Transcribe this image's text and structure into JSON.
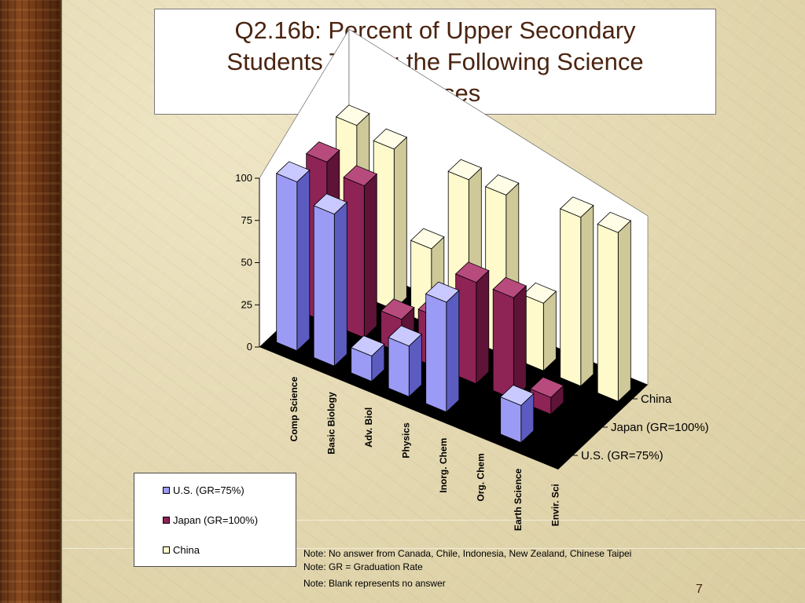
{
  "slide": {
    "title": "Q2.16b: Percent of Upper Secondary Students Taking the Following Science Courses",
    "notes": [
      "Note: No answer from Canada, Chile, Indonesia, New Zealand, Chinese Taipei",
      "Note: GR = Graduation Rate",
      "Note: Blank represents no answer"
    ],
    "page_number": "7"
  },
  "legend": {
    "items": [
      {
        "label": "U.S. (GR=75%)",
        "color": "#9b9bf5"
      },
      {
        "label": "Japan (GR=100%)",
        "color": "#8e2356"
      },
      {
        "label": "China",
        "color": "#fffacc"
      }
    ]
  },
  "colors": {
    "us_front": "#9b9bf5",
    "us_side": "#5c5cc0",
    "us_top": "#c9c9ff",
    "japan_front": "#8e2356",
    "japan_side": "#5e1337",
    "japan_top": "#b84b7e",
    "china_front": "#fffacc",
    "china_side": "#cfc99a",
    "china_top": "#fffde6",
    "floor": "#000000",
    "walls": "#ffffff",
    "title_text": "#4a2410"
  },
  "chart_data": {
    "type": "bar",
    "subtype": "3d-column",
    "title": "Q2.16b: Percent of Upper Secondary Students Taking the Following Science Courses",
    "categories": [
      "Comp Science",
      "Basic Biology",
      "Adv. Biol",
      "Physics",
      "Inorg. Chem",
      "Org. Chem",
      "Earth Science",
      "Envir. Sci"
    ],
    "series": [
      {
        "name": "U.S. (GR=75%)",
        "values": [
          100,
          90,
          15,
          30,
          65,
          null,
          22,
          null
        ]
      },
      {
        "name": "Japan (GR=100%)",
        "values": [
          95,
          90,
          20,
          30,
          60,
          60,
          10,
          null
        ]
      },
      {
        "name": "China",
        "values": [
          100,
          95,
          45,
          95,
          95,
          40,
          100,
          100
        ]
      }
    ],
    "z_labels": [
      "China",
      "Japan (GR=100%)",
      "U.S. (GR=75%)"
    ],
    "y_ticks": [
      0,
      25,
      50,
      75,
      100
    ],
    "ylim": [
      0,
      100
    ],
    "legend_position": "bottom-left",
    "grid": false
  }
}
